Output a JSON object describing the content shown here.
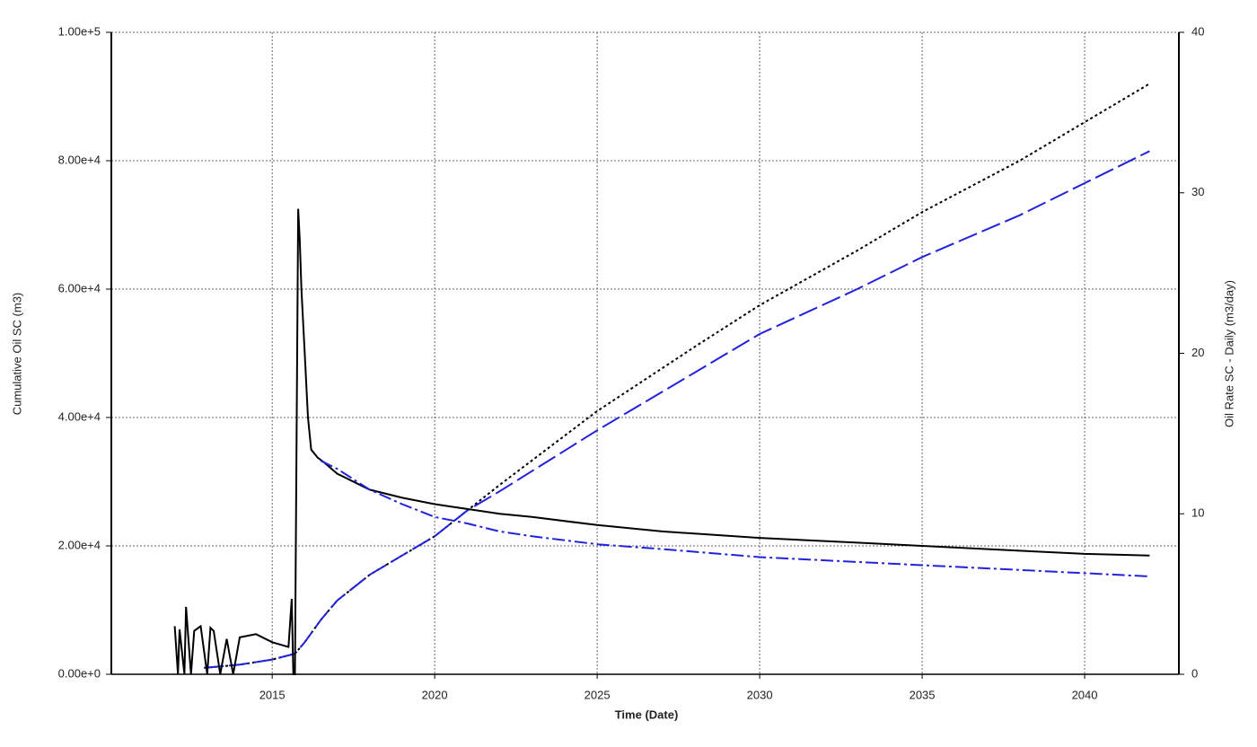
{
  "chart_data": {
    "type": "line",
    "xlabel": "Time (Date)",
    "ylabel": "Cumulative Oil SC (m3)",
    "y2label": "Oil Rate SC - Daily (m3/day)",
    "xlim": [
      2010.05,
      2042.9
    ],
    "xticks": [
      2015,
      2020,
      2025,
      2030,
      2035,
      2040
    ],
    "ylim": [
      0,
      100000
    ],
    "yticks": [
      {
        "value": 0,
        "label": "0.00e+0"
      },
      {
        "value": 20000,
        "label": "2.00e+4"
      },
      {
        "value": 40000,
        "label": "4.00e+4"
      },
      {
        "value": 60000,
        "label": "6.00e+4"
      },
      {
        "value": 80000,
        "label": "8.00e+4"
      },
      {
        "value": 100000,
        "label": "1.00e+5"
      }
    ],
    "y2lim": [
      0,
      40
    ],
    "y2ticks": [
      0,
      10,
      20,
      30,
      40
    ],
    "grid": true,
    "series": [
      {
        "color": "#000000",
        "dash": "dotted",
        "axis": "y",
        "x": [
          2012.9,
          2014,
          2015,
          2015.7,
          2016,
          2016.5,
          2017,
          2018,
          2019,
          2020,
          2021,
          2022,
          2025,
          2028,
          2030,
          2033,
          2035,
          2038,
          2040,
          2042
        ],
        "values": [
          1000,
          1500,
          2300,
          3200,
          5000,
          8500,
          11500,
          15500,
          18500,
          21500,
          25500,
          29500,
          41000,
          51000,
          57500,
          66000,
          72000,
          80000,
          86000,
          92000
        ]
      },
      {
        "color": "#2222dd",
        "dash": "long",
        "axis": "y",
        "x": [
          2012.9,
          2014,
          2015,
          2015.7,
          2016,
          2016.5,
          2017,
          2018,
          2019,
          2020,
          2021,
          2022,
          2025,
          2028,
          2030,
          2033,
          2035,
          2038,
          2040,
          2042
        ],
        "values": [
          1000,
          1500,
          2300,
          3200,
          5000,
          8500,
          11500,
          15500,
          18500,
          21500,
          25500,
          28500,
          38000,
          47000,
          53000,
          60000,
          65000,
          71500,
          76500,
          81500
        ]
      },
      {
        "color": "#000000",
        "dash": "solid",
        "axis": "y2",
        "x": [
          2012.0,
          2012.1,
          2012.15,
          2012.3,
          2012.35,
          2012.5,
          2012.6,
          2012.8,
          2013.0,
          2013.1,
          2013.2,
          2013.4,
          2013.6,
          2013.8,
          2014.0,
          2014.5,
          2015.0,
          2015.5,
          2015.6,
          2015.65,
          2015.7,
          2015.8,
          2015.85,
          2015.9,
          2016.0,
          2016.1,
          2016.2,
          2016.4,
          2016.6,
          2017,
          2018,
          2019,
          2020,
          2021,
          2022,
          2023,
          2025,
          2027,
          2030,
          2033,
          2035,
          2038,
          2040,
          2042
        ],
        "values": [
          3.0,
          0,
          2.8,
          0,
          4.2,
          0,
          2.7,
          3.0,
          0,
          2.9,
          2.7,
          0,
          2.2,
          0,
          2.3,
          2.5,
          2.0,
          1.7,
          4.7,
          0,
          0,
          29,
          27,
          24,
          20,
          16,
          14,
          13.5,
          13.2,
          12.5,
          11.5,
          11,
          10.6,
          10.3,
          10,
          9.8,
          9.3,
          8.9,
          8.5,
          8.2,
          8.0,
          7.7,
          7.5,
          7.4
        ]
      },
      {
        "color": "#2222dd",
        "dash": "dashdot",
        "axis": "y2",
        "x": [
          2016.5,
          2017,
          2018,
          2019,
          2020,
          2021,
          2022,
          2023,
          2025,
          2027,
          2030,
          2033,
          2035,
          2038,
          2040,
          2042
        ],
        "values": [
          13.3,
          12.8,
          11.5,
          10.6,
          9.8,
          9.4,
          8.9,
          8.6,
          8.1,
          7.8,
          7.3,
          7.0,
          6.8,
          6.5,
          6.3,
          6.1
        ]
      }
    ]
  }
}
